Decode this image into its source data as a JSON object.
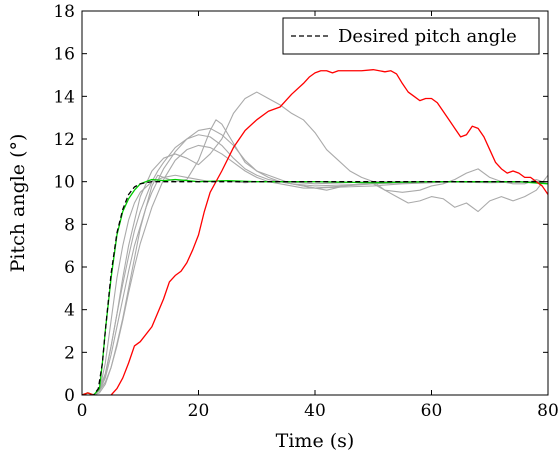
{
  "chart_data": {
    "type": "line",
    "xlabel": "Time (s)",
    "ylabel": "Pitch angle (°)",
    "xlim": [
      0,
      80
    ],
    "ylim": [
      0,
      18
    ],
    "xticks": [
      0,
      20,
      40,
      60,
      80
    ],
    "yticks": [
      0,
      2,
      4,
      6,
      8,
      10,
      12,
      14,
      16,
      18
    ],
    "grid": false,
    "legend": {
      "position": "top-right",
      "entries": [
        "Desired pitch angle"
      ]
    },
    "series": [
      {
        "name": "Desired pitch angle",
        "color": "#000000",
        "dash": "dashed",
        "x": [
          0,
          2,
          2.8,
          3.5,
          4,
          5,
          6,
          7,
          8,
          9,
          10,
          12,
          15,
          20,
          30,
          40,
          50,
          60,
          70,
          80
        ],
        "y": [
          0,
          0,
          0.3,
          1.5,
          3.0,
          5.7,
          7.6,
          8.7,
          9.4,
          9.75,
          9.9,
          10.0,
          10.0,
          10.0,
          10.0,
          10.0,
          10.0,
          10.0,
          10.0,
          10.0
        ]
      },
      {
        "color": "#00cc00",
        "dash": "solid",
        "x": [
          0,
          1,
          2,
          3,
          3.5,
          4,
          5,
          6,
          7,
          8,
          9,
          10,
          11,
          12,
          14,
          16,
          20,
          25,
          30,
          40,
          50,
          60,
          70,
          75,
          80
        ],
        "y": [
          0,
          0.1,
          0,
          0.3,
          1.5,
          3.0,
          5.5,
          7.5,
          8.6,
          9.2,
          9.6,
          9.9,
          10.0,
          10.1,
          10.05,
          10.1,
          10.0,
          10.05,
          10.0,
          10.0,
          9.95,
          10.0,
          10.0,
          10.0,
          9.9
        ]
      },
      {
        "color": "#ff0000",
        "dash": "solid",
        "x": [
          0,
          1,
          2,
          3,
          4,
          5,
          6,
          7,
          8,
          9,
          10,
          12,
          14,
          15,
          16,
          17,
          18,
          19,
          20,
          21,
          22,
          24,
          26,
          28,
          30,
          32,
          34,
          35,
          36,
          38,
          39,
          40,
          41,
          42,
          43,
          44,
          46,
          48,
          50,
          52,
          53,
          54,
          55,
          56,
          57,
          58,
          59,
          60,
          61,
          62,
          63,
          64,
          65,
          66,
          67,
          68,
          69,
          70,
          71,
          72,
          73,
          74,
          75,
          76,
          77,
          78,
          79,
          80
        ],
        "y": [
          0,
          0.1,
          0,
          -0.2,
          -0.3,
          0,
          0.3,
          0.8,
          1.5,
          2.3,
          2.5,
          3.2,
          4.5,
          5.3,
          5.6,
          5.8,
          6.2,
          6.8,
          7.5,
          8.6,
          9.5,
          10.5,
          11.6,
          12.4,
          12.9,
          13.3,
          13.5,
          13.8,
          14.1,
          14.6,
          14.9,
          15.1,
          15.2,
          15.2,
          15.1,
          15.2,
          15.2,
          15.2,
          15.25,
          15.15,
          15.2,
          15.05,
          14.6,
          14.2,
          14.0,
          13.8,
          13.9,
          13.9,
          13.7,
          13.3,
          12.9,
          12.5,
          12.1,
          12.2,
          12.6,
          12.5,
          12.1,
          11.5,
          10.9,
          10.6,
          10.4,
          10.5,
          10.4,
          10.2,
          10.2,
          10.0,
          9.8,
          9.4
        ]
      },
      {
        "color": "#aaaaaa",
        "dash": "solid",
        "x": [
          0,
          2,
          3,
          4,
          5,
          6,
          7,
          8,
          9,
          10,
          12,
          14,
          16,
          18,
          20,
          22,
          24,
          26,
          28,
          30,
          35,
          40,
          50,
          60,
          70,
          80
        ],
        "y": [
          0,
          0,
          0.2,
          1.5,
          3.5,
          5.5,
          7.0,
          8.2,
          9.0,
          9.5,
          10.0,
          10.2,
          10.3,
          10.2,
          10.1,
          10.0,
          10.05,
          10.0,
          9.95,
          10.0,
          10.0,
          9.9,
          10.0,
          10.0,
          9.95,
          10.0
        ]
      },
      {
        "color": "#aaaaaa",
        "dash": "solid",
        "x": [
          0,
          2,
          3,
          4,
          5,
          6,
          7,
          8,
          9,
          10,
          11,
          12,
          13,
          14,
          16,
          18,
          20,
          22,
          24,
          26,
          28,
          30,
          32,
          34,
          36,
          38,
          40,
          45,
          50,
          55,
          60,
          65,
          70,
          75,
          80
        ],
        "y": [
          0,
          0,
          0.3,
          1.0,
          2.3,
          3.8,
          5.2,
          6.5,
          7.7,
          8.6,
          9.3,
          10.0,
          10.5,
          10.9,
          11.6,
          12.0,
          12.2,
          12.1,
          11.7,
          11.1,
          10.6,
          10.3,
          10.1,
          10.0,
          9.9,
          9.85,
          9.8,
          9.85,
          9.9,
          9.95,
          10.0,
          10.0,
          10.0,
          10.0,
          10.0
        ]
      },
      {
        "color": "#aaaaaa",
        "dash": "solid",
        "x": [
          0,
          2,
          3,
          4,
          5,
          6,
          7,
          8,
          9,
          10,
          11,
          12,
          14,
          16,
          18,
          20,
          22,
          24,
          26,
          28,
          30,
          32,
          34,
          36,
          38,
          40,
          45,
          50,
          55,
          60,
          65,
          70,
          75,
          80
        ],
        "y": [
          0,
          0,
          0.2,
          0.8,
          1.9,
          3.2,
          4.5,
          5.8,
          7.0,
          7.9,
          8.8,
          9.5,
          10.6,
          11.4,
          12.0,
          12.4,
          12.5,
          12.2,
          11.7,
          11.0,
          10.5,
          10.2,
          10.0,
          9.9,
          9.8,
          9.7,
          9.8,
          9.9,
          9.95,
          10.0,
          10.0,
          10.0,
          10.0,
          10.0
        ]
      },
      {
        "color": "#aaaaaa",
        "dash": "solid",
        "x": [
          0,
          2,
          3,
          4,
          5,
          6,
          7,
          8,
          9,
          10,
          12,
          14,
          16,
          18,
          20,
          22,
          24,
          26,
          28,
          30,
          32,
          34,
          36,
          38,
          40,
          45,
          50,
          55,
          60,
          65,
          70,
          75,
          80
        ],
        "y": [
          0,
          0,
          0.1,
          0.5,
          1.3,
          2.3,
          3.5,
          4.8,
          6.0,
          7.1,
          8.8,
          10.1,
          11.0,
          11.5,
          11.7,
          11.6,
          11.3,
          10.9,
          10.5,
          10.2,
          10.0,
          9.9,
          9.8,
          9.7,
          9.7,
          9.75,
          9.8,
          9.9,
          9.95,
          10.0,
          10.0,
          10.0,
          10.0
        ]
      },
      {
        "color": "#aaaaaa",
        "dash": "solid",
        "x": [
          0,
          2,
          3,
          4,
          5,
          6,
          7,
          8,
          10,
          12,
          13,
          14,
          16,
          18,
          20,
          22,
          23,
          24,
          26,
          28,
          30,
          32,
          34,
          36,
          38,
          40,
          42,
          45,
          48,
          50,
          52,
          55,
          58,
          60,
          62,
          64,
          66,
          68,
          70,
          72,
          74,
          76,
          78,
          80
        ],
        "y": [
          0,
          0,
          0.2,
          0.6,
          1.3,
          2.4,
          3.6,
          5.0,
          7.8,
          9.8,
          10.3,
          10.2,
          10.0,
          10.1,
          11.0,
          12.4,
          12.9,
          12.7,
          11.8,
          10.9,
          10.5,
          10.3,
          10.1,
          9.9,
          9.8,
          9.7,
          9.6,
          9.8,
          9.9,
          9.9,
          9.6,
          9.5,
          9.6,
          9.8,
          9.9,
          10.1,
          10.4,
          10.6,
          10.2,
          10.0,
          9.9,
          9.9,
          10.1,
          9.9
        ]
      },
      {
        "color": "#aaaaaa",
        "dash": "solid",
        "x": [
          0,
          2,
          3,
          4,
          5,
          6,
          7,
          8,
          10,
          12,
          14,
          16,
          18,
          20,
          22,
          24,
          26,
          28,
          30,
          32,
          34,
          36,
          38,
          40,
          42,
          44,
          46,
          48,
          50,
          52,
          54,
          56,
          58,
          60,
          62,
          64,
          66,
          68,
          70,
          72,
          74,
          76,
          78,
          80
        ],
        "y": [
          0,
          0,
          0.2,
          0.9,
          2.3,
          3.8,
          5.5,
          7.0,
          9.3,
          10.5,
          11.1,
          11.3,
          11.1,
          10.8,
          11.3,
          12.0,
          13.2,
          13.9,
          14.2,
          13.9,
          13.6,
          13.2,
          12.9,
          12.3,
          11.5,
          11.0,
          10.5,
          10.2,
          10.0,
          9.6,
          9.3,
          9.0,
          9.1,
          9.3,
          9.2,
          8.8,
          9.0,
          8.6,
          9.1,
          9.3,
          9.1,
          9.3,
          9.6,
          10.3
        ]
      }
    ]
  }
}
